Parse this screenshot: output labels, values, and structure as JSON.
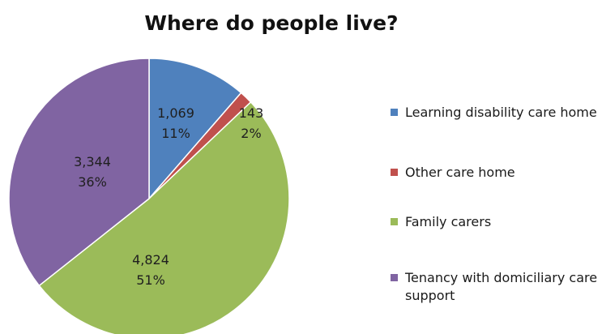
{
  "chart_data": {
    "type": "pie",
    "title": "Where do people live?",
    "slices": [
      {
        "name": "Learning disability care home",
        "value": 1069,
        "value_label": "1,069",
        "percent_label": "11%",
        "color": "#4F81BD"
      },
      {
        "name": "Other care home",
        "value": 143,
        "value_label": "143",
        "percent_label": "2%",
        "color": "#C0504D"
      },
      {
        "name": "Family carers",
        "value": 4824,
        "value_label": "4,824",
        "percent_label": "51%",
        "color": "#9BBB59"
      },
      {
        "name": "Tenancy with domiciliary care support",
        "value": 3344,
        "value_label": "3,344",
        "percent_label": "36%",
        "color": "#8064A2"
      }
    ],
    "legend": {
      "position": "right"
    }
  }
}
